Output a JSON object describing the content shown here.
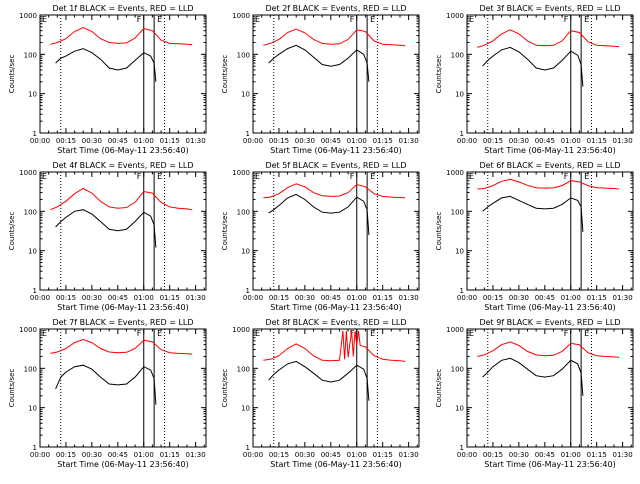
{
  "chart_data": [
    {
      "type": "line",
      "title": "Det 1f BLACK = Events, RED = LLD",
      "xlabel": "Start Time (06-May-11 23:56:40)",
      "ylabel": "Counts/sec",
      "yscale": "log",
      "ylim": [
        1,
        1000
      ],
      "xticks": [
        "00:00",
        "00:15",
        "00:30",
        "00:45",
        "01:00",
        "01:15",
        "01:30"
      ],
      "yticks": [
        "1",
        "10",
        "100",
        "1000"
      ],
      "markers": [
        "F",
        "E"
      ],
      "series": [
        {
          "name": "LLD",
          "color": "#ff0000",
          "x": [
            6,
            10,
            15,
            20,
            25,
            30,
            35,
            40,
            45,
            50,
            55,
            60,
            65,
            70,
            75,
            80,
            85,
            88
          ],
          "y": [
            180,
            200,
            250,
            380,
            480,
            380,
            250,
            200,
            190,
            195,
            260,
            450,
            400,
            230,
            190,
            185,
            180,
            175
          ]
        },
        {
          "name": "Events",
          "color": "#000000",
          "x": [
            9,
            12,
            15,
            20,
            25,
            30,
            35,
            40,
            45,
            50,
            55,
            60,
            64,
            66,
            67
          ],
          "y": [
            60,
            80,
            90,
            120,
            140,
            110,
            75,
            45,
            40,
            45,
            70,
            110,
            90,
            60,
            20
          ]
        }
      ]
    },
    {
      "type": "line",
      "title": "Det 2f BLACK = Events, RED = LLD",
      "xlabel": "Start Time (06-May-11 23:56:40)",
      "ylabel": "Counts/sec",
      "yscale": "log",
      "ylim": [
        1,
        1000
      ],
      "xticks": [
        "00:00",
        "00:15",
        "00:30",
        "00:45",
        "01:00",
        "01:15",
        "01:30"
      ],
      "yticks": [
        "1",
        "10",
        "100",
        "1000"
      ],
      "markers": [
        "F",
        "E"
      ],
      "series": [
        {
          "name": "LLD",
          "color": "#ff0000",
          "x": [
            6,
            10,
            15,
            20,
            25,
            30,
            35,
            40,
            45,
            50,
            55,
            60,
            65,
            70,
            75,
            80,
            85,
            88
          ],
          "y": [
            170,
            190,
            240,
            360,
            440,
            350,
            240,
            190,
            180,
            185,
            240,
            420,
            380,
            220,
            180,
            175,
            170,
            165
          ]
        },
        {
          "name": "Events",
          "color": "#000000",
          "x": [
            9,
            12,
            15,
            20,
            25,
            30,
            35,
            40,
            45,
            50,
            55,
            60,
            64,
            66,
            67
          ],
          "y": [
            60,
            80,
            100,
            140,
            170,
            130,
            85,
            55,
            50,
            55,
            80,
            130,
            100,
            60,
            20
          ]
        }
      ]
    },
    {
      "type": "line",
      "title": "Det 3f BLACK = Events, RED = LLD",
      "xlabel": "Start Time (06-May-11 23:56:40)",
      "ylabel": "Counts/sec",
      "yscale": "log",
      "ylim": [
        1,
        1000
      ],
      "xticks": [
        "00:00",
        "00:15",
        "00:30",
        "00:45",
        "01:00",
        "01:15",
        "01:30"
      ],
      "yticks": [
        "1",
        "10",
        "100",
        "1000"
      ],
      "markers": [
        "F",
        "E"
      ],
      "series": [
        {
          "name": "LLD",
          "color": "#ff0000",
          "x": [
            6,
            10,
            15,
            20,
            25,
            30,
            35,
            40,
            45,
            50,
            55,
            60,
            65,
            70,
            75,
            80,
            85,
            88
          ],
          "y": [
            150,
            170,
            220,
            330,
            420,
            330,
            220,
            170,
            165,
            170,
            220,
            400,
            360,
            210,
            170,
            165,
            160,
            155
          ]
        },
        {
          "name": "Events",
          "color": "#000000",
          "x": [
            9,
            12,
            15,
            20,
            25,
            30,
            35,
            40,
            45,
            50,
            55,
            60,
            64,
            66,
            67
          ],
          "y": [
            50,
            70,
            90,
            130,
            150,
            115,
            75,
            45,
            40,
            45,
            70,
            120,
            95,
            55,
            15
          ]
        }
      ]
    },
    {
      "type": "line",
      "title": "Det 4f BLACK = Events, RED = LLD",
      "xlabel": "Start Time (06-May-11 23:56:40)",
      "ylabel": "Counts/sec",
      "yscale": "log",
      "ylim": [
        1,
        1000
      ],
      "xticks": [
        "00:00",
        "00:15",
        "00:30",
        "00:45",
        "01:00",
        "01:15",
        "01:30"
      ],
      "yticks": [
        "1",
        "10",
        "100",
        "1000"
      ],
      "markers": [
        "F",
        "E"
      ],
      "series": [
        {
          "name": "LLD",
          "color": "#ff0000",
          "x": [
            6,
            10,
            15,
            20,
            25,
            30,
            35,
            40,
            45,
            50,
            55,
            60,
            65,
            70,
            75,
            80,
            85,
            88
          ],
          "y": [
            110,
            130,
            180,
            280,
            380,
            290,
            180,
            130,
            120,
            125,
            170,
            320,
            290,
            170,
            130,
            120,
            115,
            110
          ]
        },
        {
          "name": "Events",
          "color": "#000000",
          "x": [
            9,
            12,
            15,
            20,
            25,
            30,
            35,
            40,
            45,
            50,
            55,
            60,
            64,
            66,
            67
          ],
          "y": [
            40,
            55,
            70,
            100,
            110,
            85,
            55,
            35,
            32,
            35,
            55,
            95,
            75,
            45,
            12
          ]
        }
      ]
    },
    {
      "type": "line",
      "title": "Det 5f BLACK = Events, RED = LLD",
      "xlabel": "Start Time (06-May-11 23:56:40)",
      "ylabel": "Counts/sec",
      "yscale": "log",
      "ylim": [
        1,
        1000
      ],
      "xticks": [
        "00:00",
        "00:15",
        "00:30",
        "00:45",
        "01:00",
        "01:15",
        "01:30"
      ],
      "yticks": [
        "1",
        "10",
        "100",
        "1000"
      ],
      "markers": [
        "F",
        "E"
      ],
      "series": [
        {
          "name": "LLD",
          "color": "#ff0000",
          "x": [
            6,
            10,
            15,
            20,
            25,
            30,
            35,
            40,
            45,
            50,
            55,
            60,
            65,
            70,
            75,
            80,
            85,
            88
          ],
          "y": [
            220,
            230,
            280,
            400,
            500,
            420,
            300,
            250,
            240,
            245,
            300,
            480,
            420,
            280,
            240,
            230,
            225,
            220
          ]
        },
        {
          "name": "Events",
          "color": "#000000",
          "x": [
            9,
            12,
            15,
            20,
            25,
            30,
            35,
            40,
            45,
            50,
            55,
            60,
            64,
            66,
            67
          ],
          "y": [
            90,
            110,
            140,
            220,
            270,
            200,
            130,
            95,
            90,
            95,
            130,
            230,
            180,
            110,
            25
          ]
        }
      ]
    },
    {
      "type": "line",
      "title": "Det 6f BLACK = Events, RED = LLD",
      "xlabel": "Start Time (06-May-11 23:56:40)",
      "ylabel": "Counts/sec",
      "yscale": "log",
      "ylim": [
        1,
        1000
      ],
      "xticks": [
        "00:00",
        "00:15",
        "00:30",
        "00:45",
        "01:00",
        "01:15",
        "01:30"
      ],
      "yticks": [
        "1",
        "10",
        "100",
        "1000"
      ],
      "markers": [
        "F",
        "E"
      ],
      "series": [
        {
          "name": "LLD",
          "color": "#ff0000",
          "x": [
            6,
            10,
            15,
            20,
            25,
            30,
            35,
            40,
            45,
            50,
            55,
            60,
            65,
            70,
            75,
            80,
            85,
            88
          ],
          "y": [
            370,
            380,
            450,
            580,
            650,
            560,
            460,
            400,
            390,
            395,
            450,
            600,
            560,
            450,
            400,
            390,
            380,
            370
          ]
        },
        {
          "name": "Events",
          "color": "#000000",
          "x": [
            9,
            12,
            15,
            20,
            25,
            30,
            35,
            40,
            45,
            50,
            55,
            60,
            64,
            66,
            67
          ],
          "y": [
            100,
            130,
            160,
            220,
            240,
            190,
            150,
            120,
            115,
            120,
            150,
            220,
            190,
            130,
            30
          ]
        }
      ]
    },
    {
      "type": "line",
      "title": "Det 7f BLACK = Events, RED = LLD",
      "xlabel": "Start Time (06-May-11 23:56:40)",
      "ylabel": "Counts/sec",
      "yscale": "log",
      "ylim": [
        1,
        1000
      ],
      "xticks": [
        "00:00",
        "00:15",
        "00:30",
        "00:45",
        "01:00",
        "01:15",
        "01:30"
      ],
      "yticks": [
        "1",
        "10",
        "100",
        "1000"
      ],
      "markers": [
        "F",
        "E"
      ],
      "series": [
        {
          "name": "LLD",
          "color": "#ff0000",
          "x": [
            6,
            10,
            15,
            20,
            25,
            30,
            35,
            40,
            45,
            50,
            55,
            60,
            65,
            70,
            75,
            80,
            85,
            88
          ],
          "y": [
            240,
            260,
            320,
            450,
            540,
            450,
            320,
            260,
            250,
            255,
            320,
            520,
            470,
            300,
            250,
            240,
            235,
            230
          ]
        },
        {
          "name": "Events",
          "color": "#000000",
          "x": [
            9,
            12,
            15,
            20,
            25,
            30,
            35,
            40,
            45,
            50,
            55,
            60,
            64,
            66,
            67
          ],
          "y": [
            30,
            60,
            80,
            110,
            120,
            95,
            60,
            40,
            38,
            40,
            60,
            110,
            90,
            55,
            12
          ]
        }
      ]
    },
    {
      "type": "line",
      "title": "Det 8f BLACK = Events, RED = LLD",
      "xlabel": "Start Time (06-May-11 23:56:40)",
      "ylabel": "Counts/sec",
      "yscale": "log",
      "ylim": [
        1,
        1000
      ],
      "xticks": [
        "00:00",
        "00:15",
        "00:30",
        "00:45",
        "01:00",
        "01:15",
        "01:30"
      ],
      "yticks": [
        "1",
        "10",
        "100",
        "1000"
      ],
      "markers": [
        "F",
        "E"
      ],
      "series": [
        {
          "name": "LLD",
          "color": "#ff0000",
          "x": [
            6,
            10,
            15,
            20,
            25,
            30,
            35,
            40,
            45,
            50,
            52,
            53,
            54,
            55,
            57,
            58,
            59,
            60,
            61,
            62,
            65,
            70,
            75,
            80,
            85,
            88
          ],
          "y": [
            160,
            170,
            210,
            320,
            420,
            320,
            210,
            160,
            155,
            160,
            900,
            170,
            900,
            190,
            900,
            200,
            900,
            400,
            900,
            380,
            350,
            210,
            170,
            160,
            155,
            150
          ]
        },
        {
          "name": "Events",
          "color": "#000000",
          "x": [
            9,
            12,
            15,
            20,
            25,
            30,
            35,
            40,
            45,
            50,
            55,
            60,
            64,
            66,
            67
          ],
          "y": [
            50,
            70,
            90,
            130,
            150,
            110,
            75,
            50,
            45,
            50,
            75,
            120,
            95,
            55,
            15
          ]
        }
      ]
    },
    {
      "type": "line",
      "title": "Det 9f BLACK = Events, RED = LLD",
      "xlabel": "Start Time (06-May-11 23:56:40)",
      "ylabel": "Counts/sec",
      "yscale": "log",
      "ylim": [
        1,
        1000
      ],
      "xticks": [
        "00:00",
        "00:15",
        "00:30",
        "00:45",
        "01:00",
        "01:15",
        "01:30"
      ],
      "yticks": [
        "1",
        "10",
        "100",
        "1000"
      ],
      "markers": [
        "F",
        "E"
      ],
      "series": [
        {
          "name": "LLD",
          "color": "#ff0000",
          "x": [
            6,
            10,
            15,
            20,
            25,
            30,
            35,
            40,
            45,
            50,
            55,
            60,
            65,
            70,
            75,
            80,
            85,
            88
          ],
          "y": [
            200,
            220,
            280,
            400,
            470,
            380,
            270,
            220,
            210,
            215,
            270,
            430,
            400,
            250,
            210,
            200,
            195,
            190
          ]
        },
        {
          "name": "Events",
          "color": "#000000",
          "x": [
            9,
            12,
            15,
            20,
            25,
            30,
            35,
            40,
            45,
            50,
            55,
            60,
            64,
            66,
            67
          ],
          "y": [
            60,
            80,
            110,
            160,
            180,
            140,
            95,
            65,
            60,
            65,
            95,
            160,
            130,
            75,
            20
          ]
        }
      ]
    }
  ]
}
